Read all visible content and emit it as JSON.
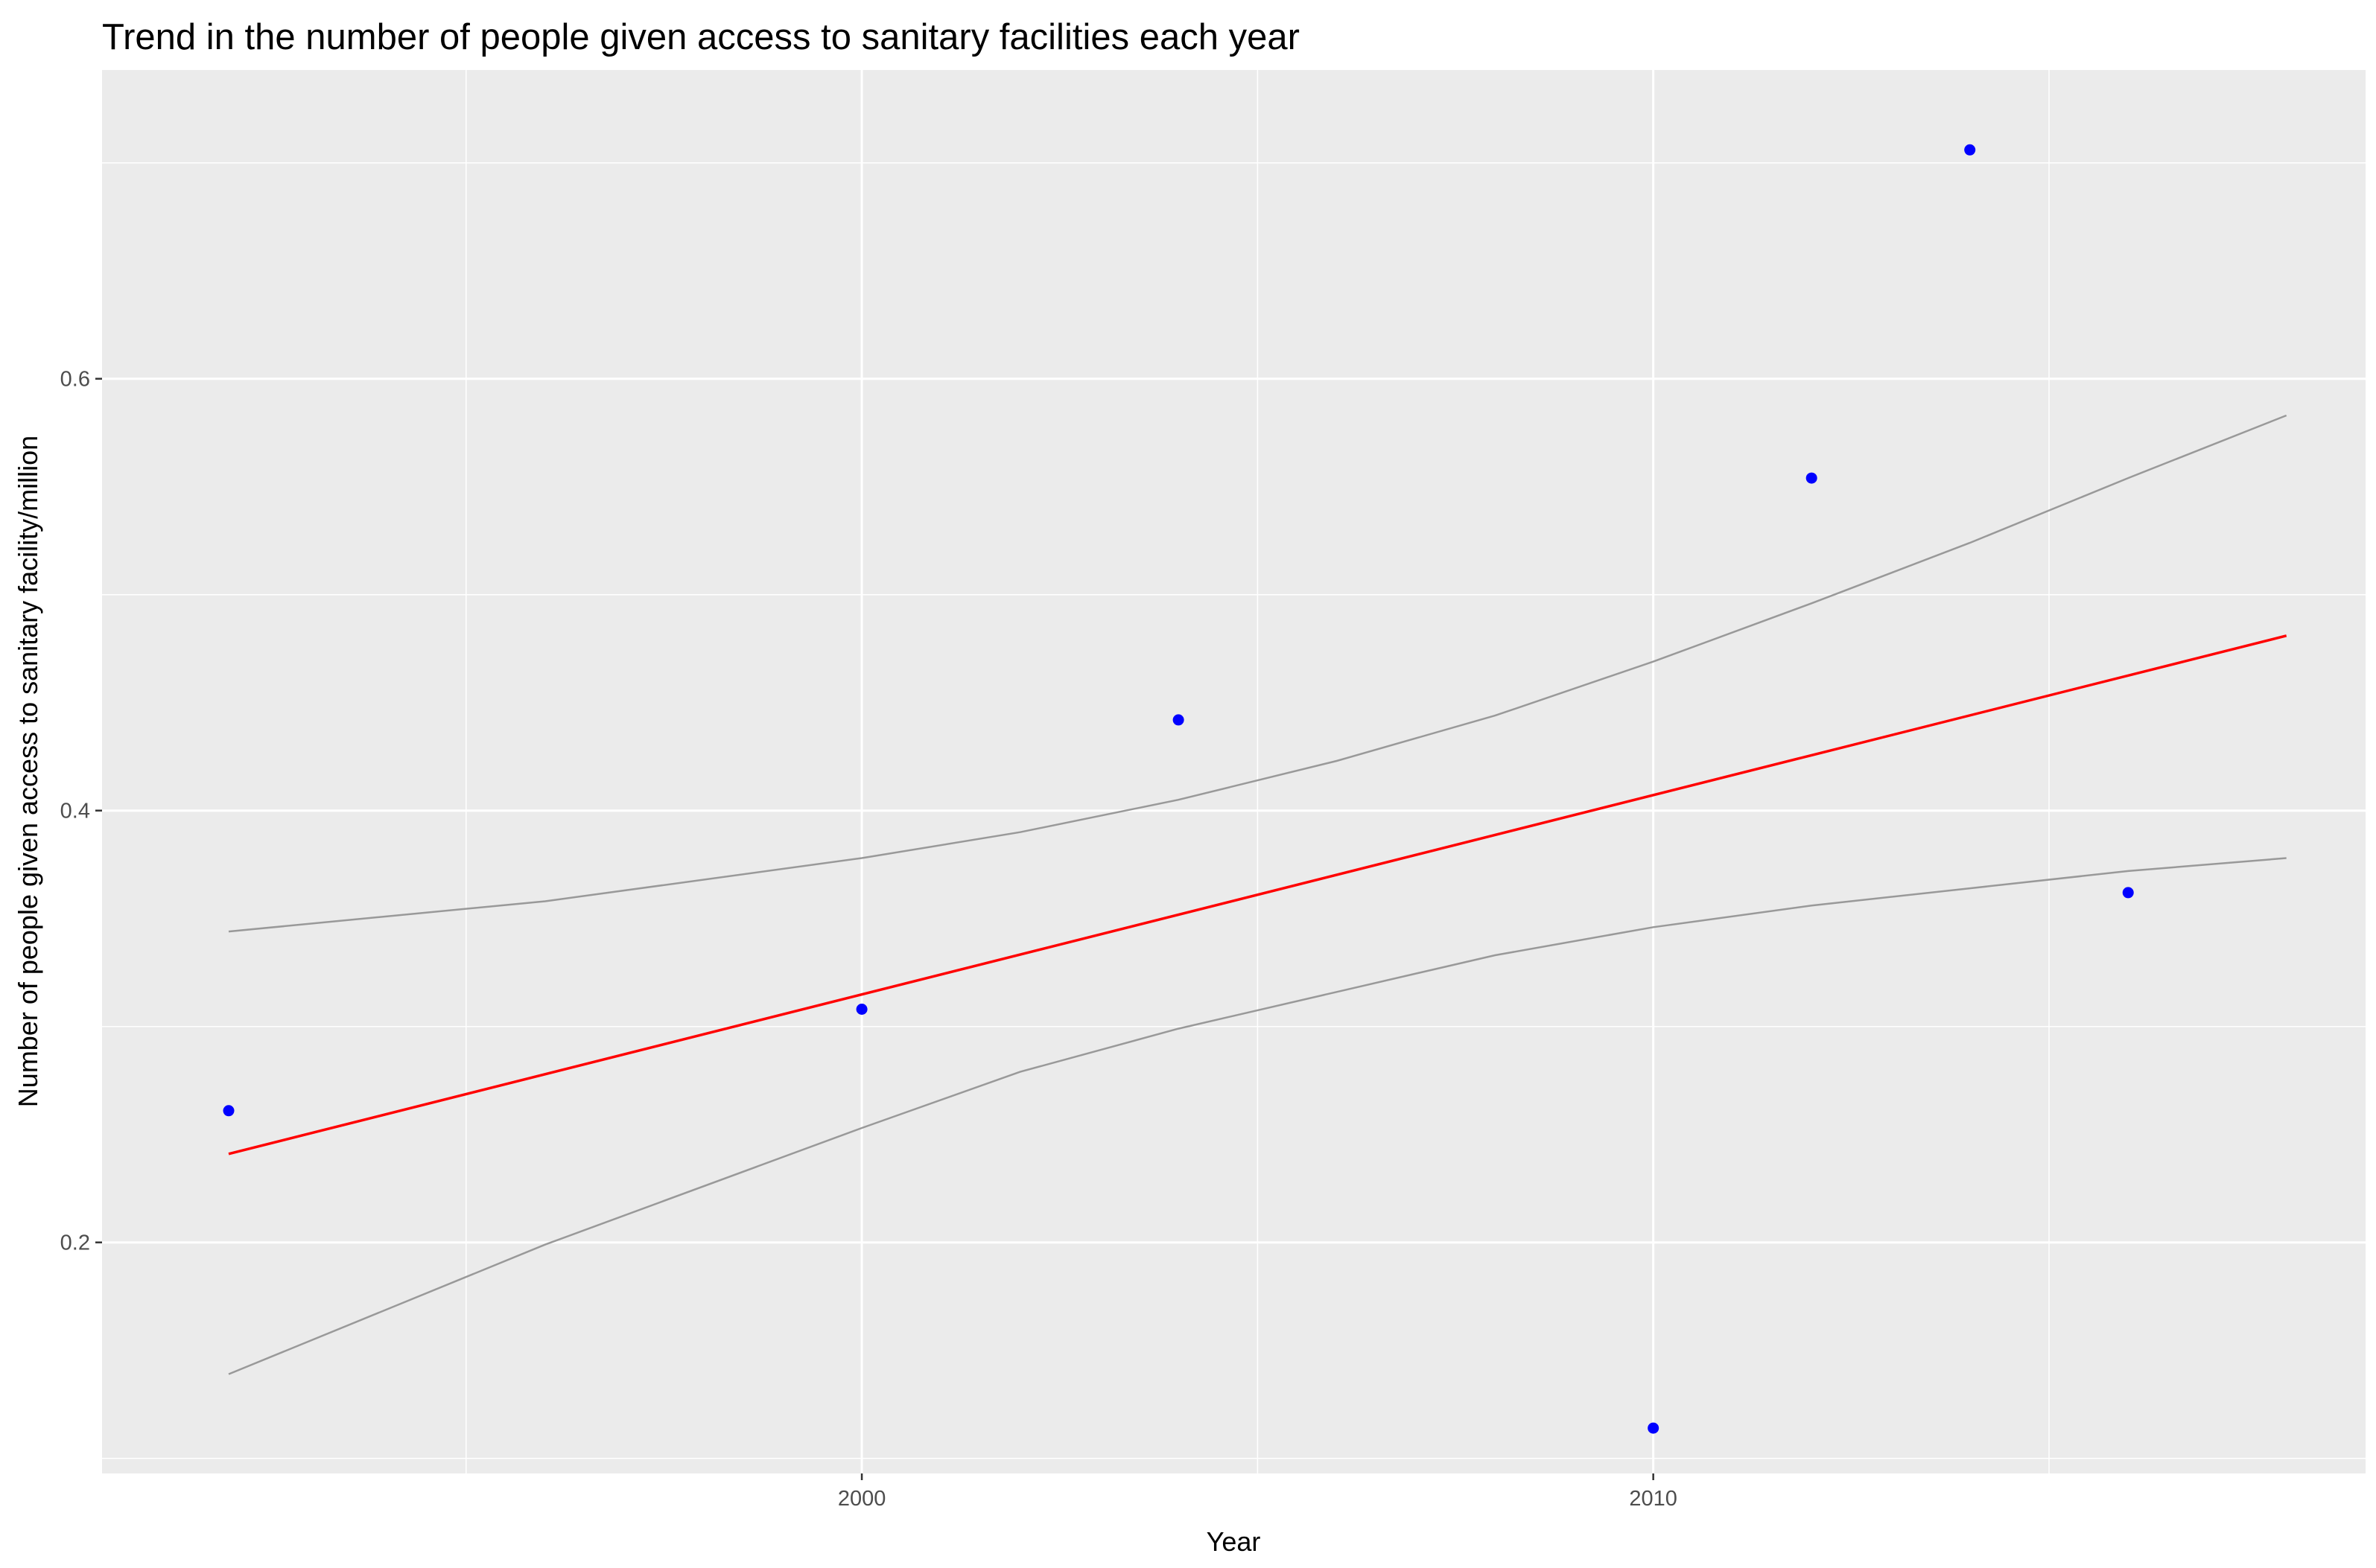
{
  "chart_data": {
    "type": "scatter",
    "title": "Trend in the number of people given access to sanitary facilities each year",
    "xlabel": "Year",
    "ylabel": "Number of people given access to sanitary facility/million",
    "xlim": [
      1990.4,
      2019.0
    ],
    "ylim": [
      0.093,
      0.743
    ],
    "x_ticks": [
      2000,
      2010
    ],
    "x_tick_labels": [
      "2000",
      "2010"
    ],
    "x_minor_ticks": [
      1995,
      2005,
      2015
    ],
    "y_ticks": [
      0.2,
      0.4,
      0.6
    ],
    "y_tick_labels": [
      "0.2",
      "0.4",
      "0.6"
    ],
    "y_minor_ticks": [
      0.1,
      0.3,
      0.5,
      0.7
    ],
    "grid": true,
    "points": {
      "color": "#0000ff",
      "x": [
        1992,
        2000,
        2004,
        2010,
        2012,
        2014,
        2016
      ],
      "y": [
        0.261,
        0.308,
        0.442,
        0.114,
        0.554,
        0.706,
        0.362
      ]
    },
    "fit_line": {
      "color": "#ff0000",
      "x": [
        1992,
        2018
      ],
      "y": [
        0.241,
        0.481
      ]
    },
    "confidence_band": {
      "color": "#999999",
      "upper": {
        "x": [
          1992,
          1996,
          2000,
          2002,
          2004,
          2006,
          2008,
          2010,
          2012,
          2014,
          2016,
          2018
        ],
        "y": [
          0.344,
          0.358,
          0.378,
          0.39,
          0.405,
          0.423,
          0.444,
          0.469,
          0.496,
          0.524,
          0.554,
          0.583
        ]
      },
      "lower": {
        "x": [
          1992,
          1996,
          2000,
          2002,
          2004,
          2006,
          2008,
          2010,
          2012,
          2014,
          2016,
          2018
        ],
        "y": [
          0.139,
          0.199,
          0.253,
          0.279,
          0.299,
          0.316,
          0.333,
          0.346,
          0.356,
          0.364,
          0.372,
          0.378
        ]
      }
    }
  }
}
